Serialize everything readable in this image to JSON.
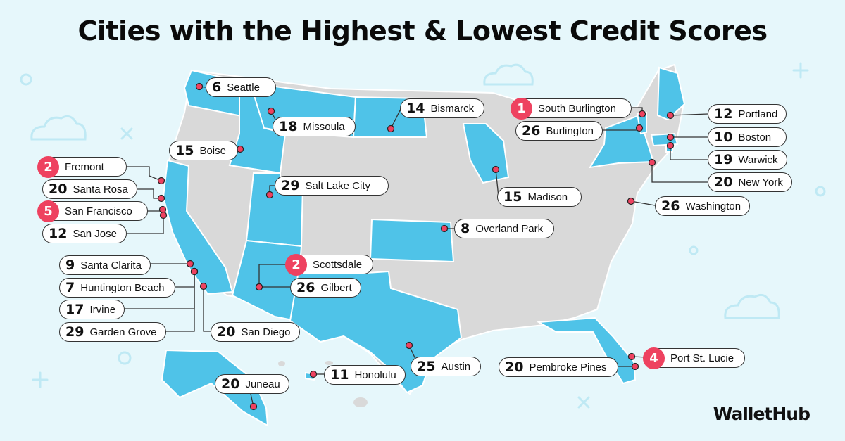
{
  "title": "Cities with the Highest & Lowest Credit Scores",
  "brand": "WalletHub",
  "colors": {
    "background": "#e6f7fb",
    "land": "#d9d9d9",
    "highlight": "#4fc3e8",
    "top_rank": "#ee4260",
    "decor": "#bfe9f4"
  },
  "icons": [
    "cloud-icon",
    "plus-icon",
    "x-icon",
    "circle-icon"
  ],
  "cities": [
    {
      "rank": "6",
      "name": "Seattle",
      "top": false
    },
    {
      "rank": "18",
      "name": "Missoula",
      "top": false
    },
    {
      "rank": "14",
      "name": "Bismarck",
      "top": false
    },
    {
      "rank": "1",
      "name": "South Burlington",
      "top": true
    },
    {
      "rank": "26",
      "name": "Burlington",
      "top": false
    },
    {
      "rank": "12",
      "name": "Portland",
      "top": false
    },
    {
      "rank": "10",
      "name": "Boston",
      "top": false
    },
    {
      "rank": "19",
      "name": "Warwick",
      "top": false
    },
    {
      "rank": "20",
      "name": "New York",
      "top": false
    },
    {
      "rank": "26",
      "name": "Washington",
      "top": false
    },
    {
      "rank": "15",
      "name": "Boise",
      "top": false
    },
    {
      "rank": "2",
      "name": "Fremont",
      "top": true
    },
    {
      "rank": "20",
      "name": "Santa Rosa",
      "top": false
    },
    {
      "rank": "5",
      "name": "San Francisco",
      "top": true
    },
    {
      "rank": "12",
      "name": "San Jose",
      "top": false
    },
    {
      "rank": "29",
      "name": "Salt Lake City",
      "top": false
    },
    {
      "rank": "15",
      "name": "Madison",
      "top": false
    },
    {
      "rank": "8",
      "name": "Overland Park",
      "top": false
    },
    {
      "rank": "9",
      "name": "Santa Clarita",
      "top": false
    },
    {
      "rank": "7",
      "name": "Huntington Beach",
      "top": false
    },
    {
      "rank": "17",
      "name": "Irvine",
      "top": false
    },
    {
      "rank": "29",
      "name": "Garden Grove",
      "top": false
    },
    {
      "rank": "20",
      "name": "San Diego",
      "top": false
    },
    {
      "rank": "2",
      "name": "Scottsdale",
      "top": true
    },
    {
      "rank": "26",
      "name": "Gilbert",
      "top": false
    },
    {
      "rank": "11",
      "name": "Honolulu",
      "top": false
    },
    {
      "rank": "25",
      "name": "Austin",
      "top": false
    },
    {
      "rank": "4",
      "name": "Port St. Lucie",
      "top": true
    },
    {
      "rank": "20",
      "name": "Pembroke Pines",
      "top": false
    },
    {
      "rank": "20",
      "name": "Juneau",
      "top": false
    }
  ]
}
